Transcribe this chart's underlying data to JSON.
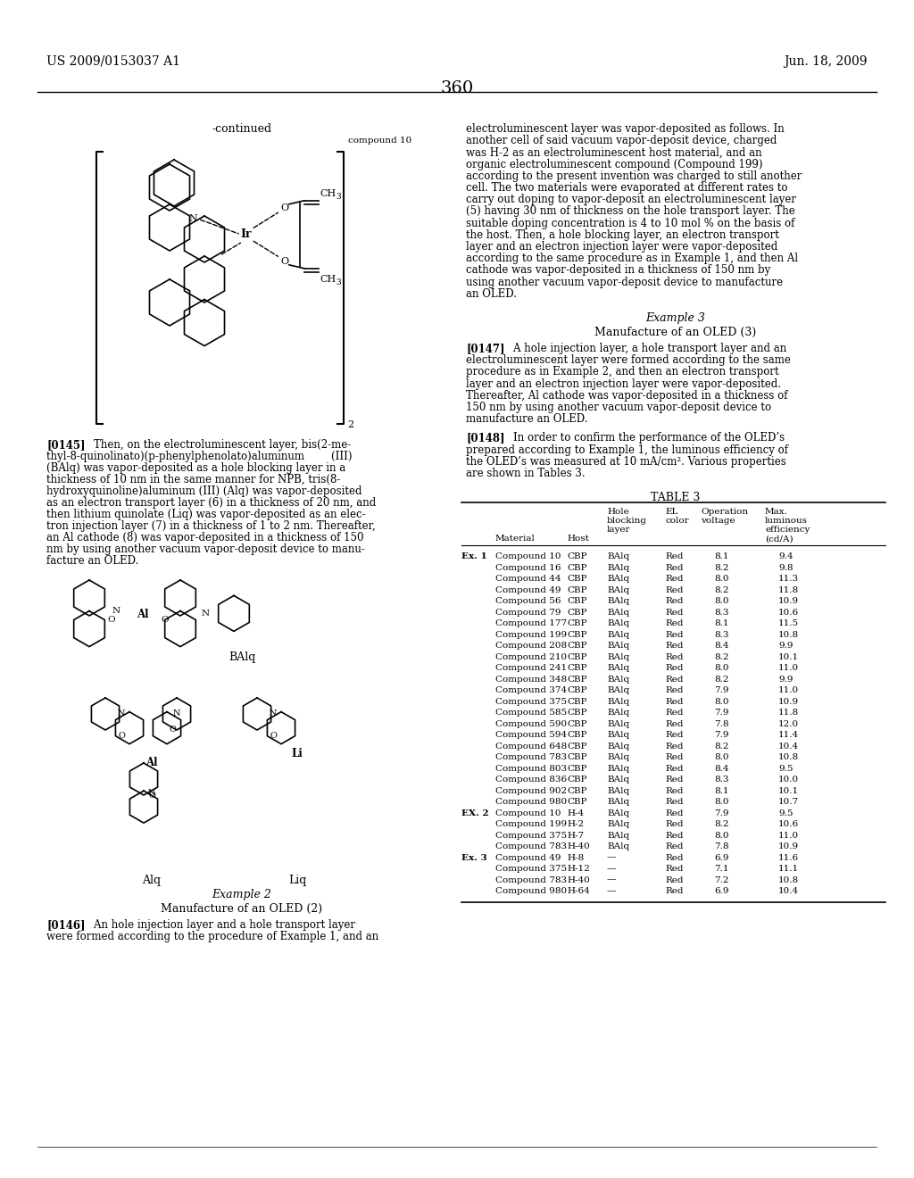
{
  "page_number": "360",
  "patent_number": "US 2009/0153037 A1",
  "patent_date": "Jun. 18, 2009",
  "continued_label": "-continued",
  "compound_10_label": "compound 10",
  "subscript_2": "2",
  "balq_label": "BAlq",
  "alq_label": "Alq",
  "liq_label": "Liq",
  "example2_title": "Example 2",
  "example2_subtitle": "Manufacture of an OLED (2)",
  "example3_title": "Example 3",
  "example3_subtitle": "Manufacture of an OLED (3)",
  "table3_title": "TABLE 3",
  "right_col_top_lines": [
    "electroluminescent layer was vapor-deposited as follows. In",
    "another cell of said vacuum vapor-deposit device, charged",
    "was H-2 as an electroluminescent host material, and an",
    "organic electroluminescent compound (Compound 199)",
    "according to the present invention was charged to still another",
    "cell. The two materials were evaporated at different rates to",
    "carry out doping to vapor-deposit an electroluminescent layer",
    "(5) having 30 nm of thickness on the hole transport layer. The",
    "suitable doping concentration is 4 to 10 mol % on the basis of",
    "the host. Then, a hole blocking layer, an electron transport",
    "layer and an electron injection layer were vapor-deposited",
    "according to the same procedure as in Example 1, and then Al",
    "cathode was vapor-deposited in a thickness of 150 nm by",
    "using another vacuum vapor-deposit device to manufacture",
    "an OLED."
  ],
  "para_0145_lines": [
    "[0145]    Then, on the electroluminescent layer, bis(2-me-",
    "thyl-8-quinolinato)(p-phenylphenolato)aluminum        (III)",
    "(BAlq) was vapor-deposited as a hole blocking layer in a",
    "thickness of 10 nm in the same manner for NPB, tris(8-",
    "hydroxyquinoline)aluminum (III) (Alq) was vapor-deposited",
    "as an electron transport layer (6) in a thickness of 20 nm, and",
    "then lithium quinolate (Liq) was vapor-deposited as an elec-",
    "tron injection layer (7) in a thickness of 1 to 2 nm. Thereafter,",
    "an Al cathode (8) was vapor-deposited in a thickness of 150",
    "nm by using another vacuum vapor-deposit device to manu-",
    "facture an OLED."
  ],
  "para_0146_lines": [
    "[0146]    An hole injection layer and a hole transport layer",
    "were formed according to the procedure of Example 1, and an"
  ],
  "para_0147_lines": [
    "[0147]    A hole injection layer, a hole transport layer and an",
    "electroluminescent layer were formed according to the same",
    "procedure as in Example 2, and then an electron transport",
    "layer and an electron injection layer were vapor-deposited.",
    "Thereafter, Al cathode was vapor-deposited in a thickness of",
    "150 nm by using another vacuum vapor-deposit device to",
    "manufacture an OLED."
  ],
  "para_0148_lines": [
    "[0148]    In order to confirm the performance of the OLED’s",
    "prepared according to Example 1, the luminous efficiency of",
    "the OLED’s was measured at 10 mA/cm². Various properties",
    "are shown in Tables 3."
  ],
  "table_data": [
    [
      "Ex. 1",
      "Compound 10",
      "CBP",
      "BAlq",
      "Red",
      "8.1",
      "9.4"
    ],
    [
      "",
      "Compound 16",
      "CBP",
      "BAlq",
      "Red",
      "8.2",
      "9.8"
    ],
    [
      "",
      "Compound 44",
      "CBP",
      "BAlq",
      "Red",
      "8.0",
      "11.3"
    ],
    [
      "",
      "Compound 49",
      "CBP",
      "BAlq",
      "Red",
      "8.2",
      "11.8"
    ],
    [
      "",
      "Compound 56",
      "CBP",
      "BAlq",
      "Red",
      "8.0",
      "10.9"
    ],
    [
      "",
      "Compound 79",
      "CBP",
      "BAlq",
      "Red",
      "8.3",
      "10.6"
    ],
    [
      "",
      "Compound 177",
      "CBP",
      "BAlq",
      "Red",
      "8.1",
      "11.5"
    ],
    [
      "",
      "Compound 199",
      "CBP",
      "BAlq",
      "Red",
      "8.3",
      "10.8"
    ],
    [
      "",
      "Compound 208",
      "CBP",
      "BAlq",
      "Red",
      "8.4",
      "9.9"
    ],
    [
      "",
      "Compound 210",
      "CBP",
      "BAlq",
      "Red",
      "8.2",
      "10.1"
    ],
    [
      "",
      "Compound 241",
      "CBP",
      "BAlq",
      "Red",
      "8.0",
      "11.0"
    ],
    [
      "",
      "Compound 348",
      "CBP",
      "BAlq",
      "Red",
      "8.2",
      "9.9"
    ],
    [
      "",
      "Compound 374",
      "CBP",
      "BAlq",
      "Red",
      "7.9",
      "11.0"
    ],
    [
      "",
      "Compound 375",
      "CBP",
      "BAlq",
      "Red",
      "8.0",
      "10.9"
    ],
    [
      "",
      "Compound 585",
      "CBP",
      "BAlq",
      "Red",
      "7.9",
      "11.8"
    ],
    [
      "",
      "Compound 590",
      "CBP",
      "BAlq",
      "Red",
      "7.8",
      "12.0"
    ],
    [
      "",
      "Compound 594",
      "CBP",
      "BAlq",
      "Red",
      "7.9",
      "11.4"
    ],
    [
      "",
      "Compound 648",
      "CBP",
      "BAlq",
      "Red",
      "8.2",
      "10.4"
    ],
    [
      "",
      "Compound 783",
      "CBP",
      "BAlq",
      "Red",
      "8.0",
      "10.8"
    ],
    [
      "",
      "Compound 803",
      "CBP",
      "BAlq",
      "Red",
      "8.4",
      "9.5"
    ],
    [
      "",
      "Compound 836",
      "CBP",
      "BAlq",
      "Red",
      "8.3",
      "10.0"
    ],
    [
      "",
      "Compound 902",
      "CBP",
      "BAlq",
      "Red",
      "8.1",
      "10.1"
    ],
    [
      "",
      "Compound 980",
      "CBP",
      "BAlq",
      "Red",
      "8.0",
      "10.7"
    ],
    [
      "EX. 2",
      "Compound 10",
      "H-4",
      "BAlq",
      "Red",
      "7.9",
      "9.5"
    ],
    [
      "",
      "Compound 199",
      "H-2",
      "BAlq",
      "Red",
      "8.2",
      "10.6"
    ],
    [
      "",
      "Compound 375",
      "H-7",
      "BAlq",
      "Red",
      "8.0",
      "11.0"
    ],
    [
      "",
      "Compound 783",
      "H-40",
      "BAlq",
      "Red",
      "7.8",
      "10.9"
    ],
    [
      "Ex. 3",
      "Compound 49",
      "H-8",
      "—",
      "Red",
      "6.9",
      "11.6"
    ],
    [
      "",
      "Compound 375",
      "H-12",
      "—",
      "Red",
      "7.1",
      "11.1"
    ],
    [
      "",
      "Compound 783",
      "H-40",
      "—",
      "Red",
      "7.2",
      "10.8"
    ],
    [
      "",
      "Compound 980",
      "H-64",
      "—",
      "Red",
      "6.9",
      "10.4"
    ]
  ],
  "bg_color": "#ffffff",
  "text_color": "#000000"
}
